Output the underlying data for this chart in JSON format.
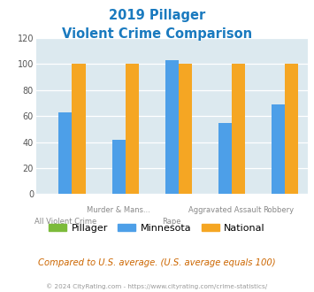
{
  "title_line1": "2019 Pillager",
  "title_line2": "Violent Crime Comparison",
  "cat_top": [
    "",
    "Murder & Mans...",
    "",
    "Aggravated Assault",
    "Robbery"
  ],
  "cat_bot": [
    "All Violent Crime",
    "",
    "Rape",
    "",
    ""
  ],
  "pillager": [
    0,
    0,
    0,
    0,
    0
  ],
  "minnesota": [
    63,
    42,
    103,
    55,
    69
  ],
  "national": [
    100,
    100,
    100,
    100,
    100
  ],
  "pillager_color": "#7CBB3A",
  "minnesota_color": "#4D9FE8",
  "national_color": "#F5A623",
  "title_color": "#1A7ABF",
  "plot_bg": "#dce9ef",
  "ylim": [
    0,
    120
  ],
  "yticks": [
    0,
    20,
    40,
    60,
    80,
    100,
    120
  ],
  "footer_text": "Compared to U.S. average. (U.S. average equals 100)",
  "copyright_text": "© 2024 CityRating.com - https://www.cityrating.com/crime-statistics/",
  "footer_color": "#cc6600",
  "copyright_color": "#999999",
  "grid_color": "#ffffff",
  "bar_width": 0.25
}
